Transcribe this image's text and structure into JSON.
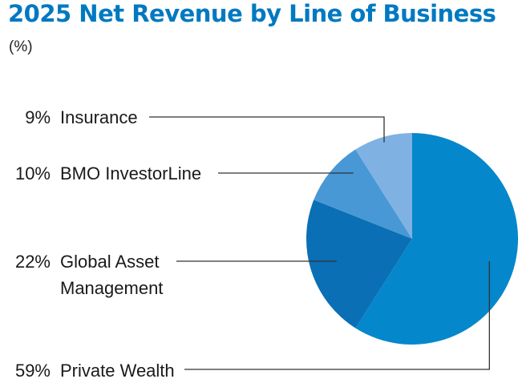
{
  "colors": {
    "title": "#0079c1",
    "leader": "#333333",
    "slices": [
      "#0587cc",
      "#0a6fb5",
      "#4898d6",
      "#7fb2e2"
    ]
  },
  "chart_data": {
    "type": "pie",
    "title": "2025 Net Revenue by Line of Business",
    "subtitle": "(%)",
    "slices": [
      {
        "label": "Private Wealth",
        "value": 59,
        "value_label": "59%",
        "label_lines": [
          "Private Wealth"
        ]
      },
      {
        "label": "Global Asset Management",
        "value": 22,
        "value_label": "22%",
        "label_lines": [
          "Global Asset",
          "Management"
        ]
      },
      {
        "label": "BMO InvestorLine",
        "value": 10,
        "value_label": "10%",
        "label_lines": [
          "BMO InvestorLine"
        ]
      },
      {
        "label": "Insurance",
        "value": 9,
        "value_label": "9%",
        "label_lines": [
          "Insurance"
        ]
      }
    ],
    "start": "12 o'clock",
    "direction": "clockwise",
    "legend": "none"
  }
}
